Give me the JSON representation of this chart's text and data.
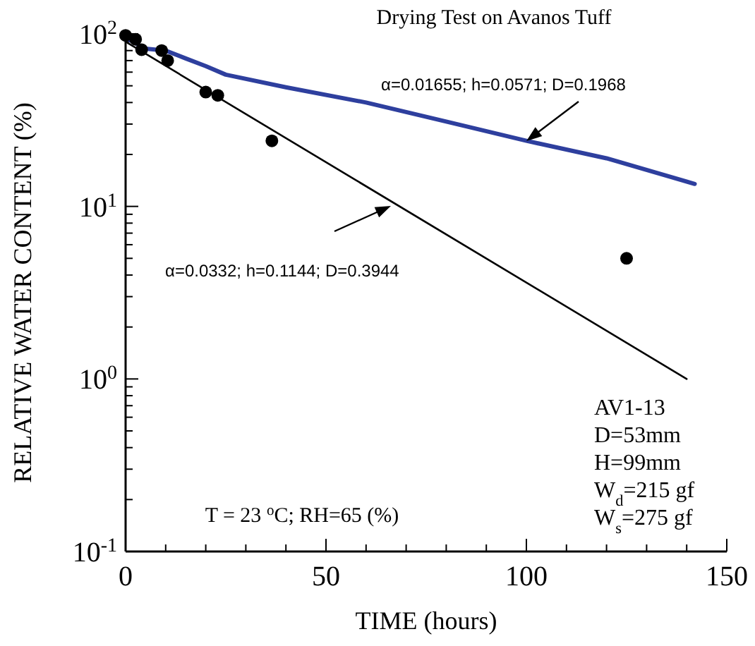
{
  "chart_data": {
    "type": "scatter",
    "title": "Drying Test on Avanos Tuff",
    "xlabel": "TIME (hours)",
    "ylabel": "RELATIVE WATER CONTENT (%)",
    "log": "y",
    "xlim": [
      0,
      150
    ],
    "ylim": [
      0.1,
      100
    ],
    "xticks": [
      0,
      {
        "value": 10,
        "label": null
      },
      {
        "value": 20,
        "label": null
      },
      {
        "value": 30,
        "label": null
      },
      {
        "value": 40,
        "label": null
      },
      50,
      {
        "value": 60,
        "label": null
      },
      {
        "value": 70,
        "label": null
      },
      {
        "value": 80,
        "label": null
      },
      {
        "value": 90,
        "label": null
      },
      100,
      {
        "value": 110,
        "label": null
      },
      {
        "value": 120,
        "label": null
      },
      {
        "value": 130,
        "label": null
      },
      {
        "value": 140,
        "label": null
      },
      150
    ],
    "yticks": [
      {
        "value": 0.1,
        "label": "10$^{-1}$"
      },
      {
        "value": 0.2,
        "label": null
      },
      {
        "value": 0.3,
        "label": null
      },
      {
        "value": 0.4,
        "label": null
      },
      {
        "value": 0.5,
        "label": null
      },
      {
        "value": 0.6,
        "label": null
      },
      {
        "value": 0.7,
        "label": null
      },
      {
        "value": 0.8,
        "label": null
      },
      {
        "value": 0.9,
        "label": null
      },
      {
        "value": 1,
        "label": "10$^{0}$"
      },
      {
        "value": 2,
        "label": null
      },
      {
        "value": 3,
        "label": null
      },
      {
        "value": 4,
        "label": null
      },
      {
        "value": 5,
        "label": null
      },
      {
        "value": 6,
        "label": null
      },
      {
        "value": 7,
        "label": null
      },
      {
        "value": 8,
        "label": null
      },
      {
        "value": 9,
        "label": null
      },
      {
        "value": 10,
        "label": "10$^{1}$"
      },
      {
        "value": 20,
        "label": null
      },
      {
        "value": 30,
        "label": null
      },
      {
        "value": 40,
        "label": null
      },
      {
        "value": 50,
        "label": null
      },
      {
        "value": 60,
        "label": null
      },
      {
        "value": 70,
        "label": null
      },
      {
        "value": 80,
        "label": null
      },
      {
        "value": 90,
        "label": null
      },
      {
        "value": 100,
        "label": "10$^{2}$"
      }
    ],
    "grid": false,
    "series": [
      {
        "type": "line",
        "color": "#2e3f9e",
        "marker": "none",
        "x": [
          0,
          5,
          10,
          15,
          20,
          25,
          40,
          60,
          80,
          100,
          120,
          142
        ],
        "values": [
          95,
          82,
          80,
          72,
          65,
          58,
          49,
          40,
          31,
          24,
          19,
          13.5
        ]
      },
      {
        "type": "line",
        "color": "#000000",
        "marker": "none",
        "x": [
          0,
          140
        ],
        "values": [
          90,
          1.0
        ]
      },
      {
        "color": "#000000",
        "marker": "circle",
        "x": [
          0,
          2.5,
          4,
          9,
          10.5,
          20,
          23,
          36.5,
          125
        ],
        "values": [
          98,
          93,
          81,
          80,
          70,
          46,
          44,
          24,
          5
        ]
      }
    ],
    "annotations": [
      "α=0.01655; h=0.0571; D=0.1968",
      "α=0.0332; h=0.1144; D=0.3944",
      "T = 23 $^{o}$C; RH=65 (%)",
      "AV1-13",
      "D=53mm",
      "H=99mm",
      "W$_{d}$=215 gf",
      "W$_{s}$=275 gf"
    ]
  }
}
